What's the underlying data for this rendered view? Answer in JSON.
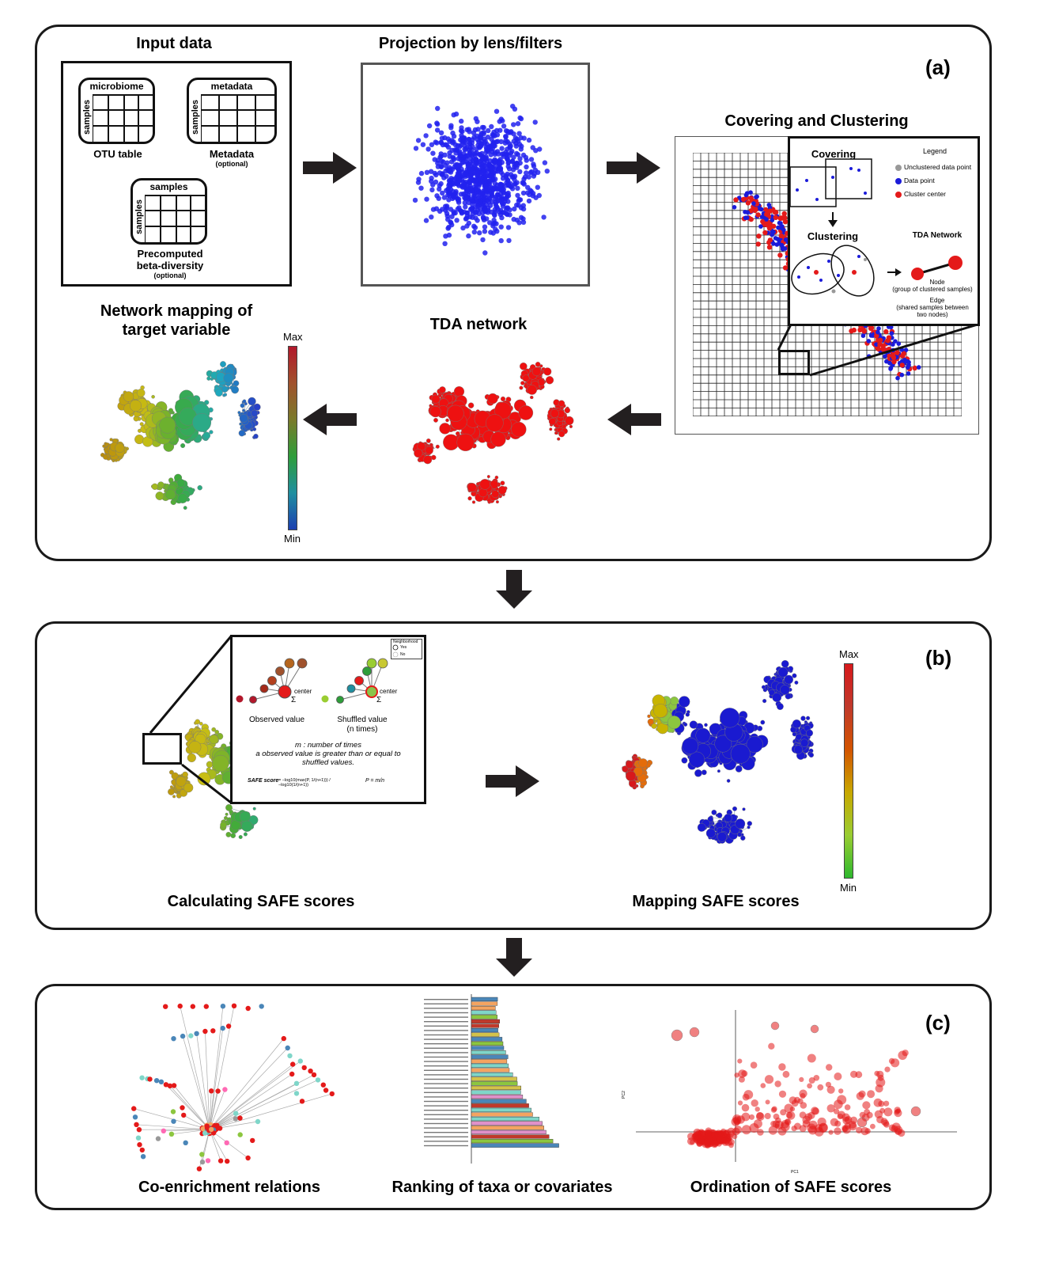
{
  "panel_a": {
    "tag": "(a)",
    "input": {
      "title": "Input data",
      "microbiome": {
        "header": "microbiome",
        "side": "samples",
        "caption": "OTU table"
      },
      "metadata": {
        "header": "metadata",
        "side": "samples",
        "caption": "Metadata",
        "note": "(optional)"
      },
      "beta": {
        "header": "samples",
        "side": "samples",
        "caption_1": "Precomputed",
        "caption_2": "beta-diversity",
        "note": "(optional)"
      }
    },
    "projection": {
      "title": "Projection by lens/filters"
    },
    "covering": {
      "title": "Covering and Clustering",
      "inset_covering": "Covering",
      "inset_clustering": "Clustering",
      "inset_tda": "TDA Network",
      "legend_title": "Legend",
      "legend": [
        "Unclustered data point",
        "Data point",
        "Cluster center"
      ],
      "node_1": "Node",
      "node_2": "(group of clustered samples)",
      "edge_1": "Edge",
      "edge_2": "(shared samples between",
      "edge_3": "two nodes)"
    },
    "tda": {
      "title": "TDA network"
    },
    "mapping": {
      "title_1": "Network mapping of",
      "title_2": "target variable",
      "max": "Max",
      "min": "Min"
    }
  },
  "panel_b": {
    "tag": "(b)",
    "calc_title": "Calculating SAFE scores",
    "map_title": "Mapping SAFE scores",
    "max": "Max",
    "min": "Min",
    "inset": {
      "legend_title": "Neighborhood",
      "legend_yes": "Yes",
      "legend_no": "No",
      "center": "center",
      "center2": "center",
      "sigma": "Σ",
      "sigma2": "Σ",
      "observed": "Observed value",
      "shuffled": "Shuffled value",
      "ntimes": "(n times)",
      "m_1": "m : number of times",
      "m_2": "a observed value is greater than or equal to",
      "m_3": "shuffled values.",
      "safe_label": "SAFE score",
      "safe_eq": "= −log10(max(P, 1/(n+1))) / −log10(1/(n+1))",
      "p_eq": "P = m/n"
    }
  },
  "panel_c": {
    "tag": "(c)",
    "coenrich_title": "Co-enrichment relations",
    "ranking_title": "Ranking of taxa or covariates",
    "ordination_title": "Ordination of SAFE scores",
    "ordination_xlabel": "PC1",
    "ordination_ylabel": "PC2"
  },
  "colors": {
    "panel_border": "#1a1a1a",
    "projection_point": "#2222ee",
    "tda_node": "#ee1111",
    "edge": "#a8b4bf",
    "arrow": "#231f20"
  }
}
